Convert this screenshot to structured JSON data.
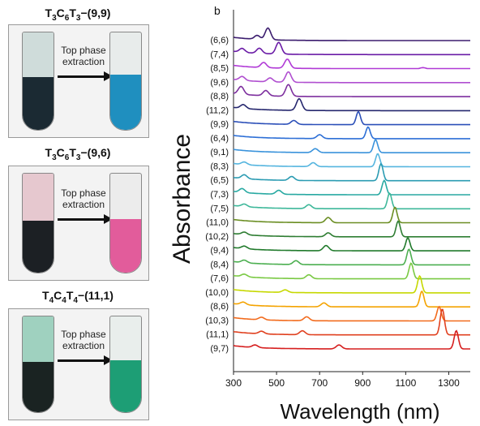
{
  "panels": [
    {
      "title": "T3C6T3−(9,9)",
      "title_html_parts": [
        "T",
        "3",
        "C",
        "6",
        "T",
        "3",
        "−(9,9)"
      ],
      "bottom_color": "#1b2a33",
      "top_color": "#cfdcda",
      "extract_color": "#1f8fbf",
      "arrow_text": "Top phase extraction"
    },
    {
      "title": "T3C6T3−(9,6)",
      "title_html_parts": [
        "T",
        "3",
        "C",
        "6",
        "T",
        "3",
        "−(9,6)"
      ],
      "bottom_color": "#1c2024",
      "top_color": "#e6c8cf",
      "extract_color": "#e25c9b",
      "arrow_text": "Top phase extraction"
    },
    {
      "title": "T4C4T4−(11,1)",
      "title_html_parts": [
        "T",
        "4",
        "C",
        "4",
        "T",
        "4",
        "−(11,1)"
      ],
      "bottom_color": "#1a2322",
      "top_color": "#9fd1bf",
      "extract_color": "#1d9e75",
      "arrow_text": "Top phase extraction"
    }
  ],
  "chart_data": {
    "type": "line",
    "panel_label": "b",
    "xlabel": "Wavelength (nm)",
    "ylabel": "Absorbance",
    "xlim": [
      300,
      1400
    ],
    "xticks": [
      300,
      500,
      700,
      900,
      1100,
      1300
    ],
    "series": [
      {
        "name": "(6,6)",
        "color": "#3b1c6e",
        "peaks": [
          {
            "x": 460,
            "h": 0.9
          },
          {
            "x": 410,
            "h": 0.3
          }
        ]
      },
      {
        "name": "(7,4)",
        "color": "#6a1ba6",
        "peaks": [
          {
            "x": 510,
            "h": 0.9
          },
          {
            "x": 420,
            "h": 0.4
          },
          {
            "x": 340,
            "h": 0.3
          }
        ]
      },
      {
        "name": "(8,5)",
        "color": "#b03ad6",
        "peaks": [
          {
            "x": 550,
            "h": 0.7
          },
          {
            "x": 440,
            "h": 0.4
          },
          {
            "x": 1180,
            "h": 0.08
          }
        ]
      },
      {
        "name": "(9,6)",
        "color": "#b04fd0",
        "peaks": [
          {
            "x": 555,
            "h": 0.8
          },
          {
            "x": 470,
            "h": 0.3
          },
          {
            "x": 340,
            "h": 0.3
          }
        ]
      },
      {
        "name": "(8,8)",
        "color": "#7d2f9e",
        "peaks": [
          {
            "x": 555,
            "h": 0.9
          },
          {
            "x": 450,
            "h": 0.4
          },
          {
            "x": 335,
            "h": 0.6
          }
        ]
      },
      {
        "name": "(11,2)",
        "color": "#25276e",
        "peaks": [
          {
            "x": 605,
            "h": 0.9
          },
          {
            "x": 345,
            "h": 0.3
          }
        ]
      },
      {
        "name": "(9,9)",
        "color": "#2b4fb8",
        "peaks": [
          {
            "x": 880,
            "h": 1.0
          },
          {
            "x": 580,
            "h": 0.3
          }
        ]
      },
      {
        "name": "(6,4)",
        "color": "#2d6fd6",
        "peaks": [
          {
            "x": 925,
            "h": 0.9
          },
          {
            "x": 700,
            "h": 0.3
          }
        ]
      },
      {
        "name": "(9,1)",
        "color": "#3a93db",
        "peaks": [
          {
            "x": 960,
            "h": 1.0
          },
          {
            "x": 680,
            "h": 0.3
          }
        ]
      },
      {
        "name": "(8,3)",
        "color": "#55b5df",
        "peaks": [
          {
            "x": 970,
            "h": 1.0
          },
          {
            "x": 670,
            "h": 0.3
          },
          {
            "x": 350,
            "h": 0.2
          }
        ]
      },
      {
        "name": "(6,5)",
        "color": "#2a9bb2",
        "peaks": [
          {
            "x": 985,
            "h": 1.3
          },
          {
            "x": 570,
            "h": 0.3
          },
          {
            "x": 350,
            "h": 0.3
          }
        ]
      },
      {
        "name": "(7,3)",
        "color": "#28a9a2",
        "peaks": [
          {
            "x": 1000,
            "h": 1.1
          },
          {
            "x": 510,
            "h": 0.3
          },
          {
            "x": 340,
            "h": 0.3
          }
        ]
      },
      {
        "name": "(7,5)",
        "color": "#3eb89a",
        "peaks": [
          {
            "x": 1025,
            "h": 1.2
          },
          {
            "x": 650,
            "h": 0.3
          },
          {
            "x": 350,
            "h": 0.2
          }
        ]
      },
      {
        "name": "(11,0)",
        "color": "#6b8e23",
        "peaks": [
          {
            "x": 1050,
            "h": 1.2
          },
          {
            "x": 740,
            "h": 0.4
          }
        ]
      },
      {
        "name": "(10,2)",
        "color": "#2e7d32",
        "peaks": [
          {
            "x": 1065,
            "h": 1.2
          },
          {
            "x": 740,
            "h": 0.3
          },
          {
            "x": 350,
            "h": 0.2
          }
        ]
      },
      {
        "name": "(9,4)",
        "color": "#217a2c",
        "peaks": [
          {
            "x": 1110,
            "h": 1.0
          },
          {
            "x": 730,
            "h": 0.4
          },
          {
            "x": 350,
            "h": 0.2
          }
        ]
      },
      {
        "name": "(8,4)",
        "color": "#4caf50",
        "peaks": [
          {
            "x": 1115,
            "h": 1.2
          },
          {
            "x": 590,
            "h": 0.3
          },
          {
            "x": 350,
            "h": 0.2
          }
        ]
      },
      {
        "name": "(7,6)",
        "color": "#7ac943",
        "peaks": [
          {
            "x": 1125,
            "h": 1.2
          },
          {
            "x": 650,
            "h": 0.3
          },
          {
            "x": 350,
            "h": 0.2
          }
        ]
      },
      {
        "name": "(10,0)",
        "color": "#c6d800",
        "peaks": [
          {
            "x": 1165,
            "h": 1.3
          },
          {
            "x": 540,
            "h": 0.2
          }
        ]
      },
      {
        "name": "(8,6)",
        "color": "#f4a300",
        "peaks": [
          {
            "x": 1175,
            "h": 1.2
          },
          {
            "x": 720,
            "h": 0.3
          },
          {
            "x": 345,
            "h": 0.2
          }
        ]
      },
      {
        "name": "(10,3)",
        "color": "#f26b1d",
        "peaks": [
          {
            "x": 1255,
            "h": 1.1
          },
          {
            "x": 640,
            "h": 0.3
          },
          {
            "x": 430,
            "h": 0.2
          }
        ]
      },
      {
        "name": "(11,1)",
        "color": "#e0401f",
        "peaks": [
          {
            "x": 1270,
            "h": 2.0
          },
          {
            "x": 620,
            "h": 0.3
          },
          {
            "x": 430,
            "h": 0.2
          }
        ]
      },
      {
        "name": "(9,7)",
        "color": "#d61f1f",
        "peaks": [
          {
            "x": 1335,
            "h": 1.4
          },
          {
            "x": 790,
            "h": 0.3
          },
          {
            "x": 400,
            "h": 0.2
          }
        ]
      }
    ]
  }
}
